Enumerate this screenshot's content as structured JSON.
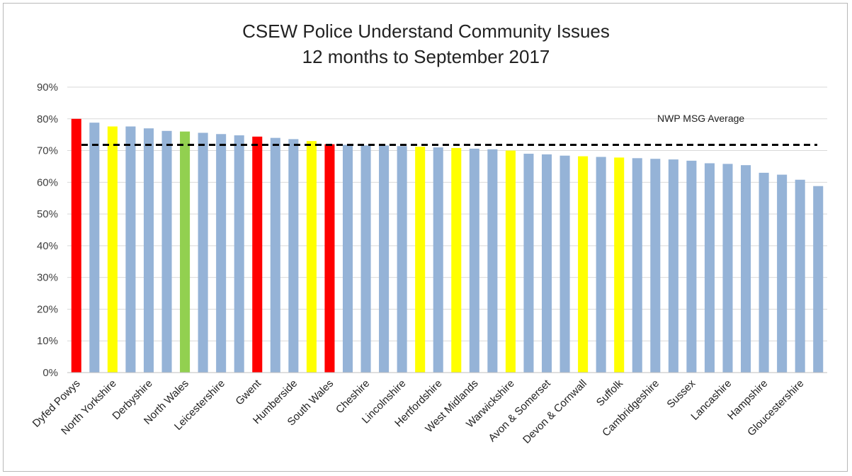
{
  "chart_data": {
    "type": "bar",
    "title": "CSEW Police Understand Community Issues",
    "subtitle": "12 months to September 2017",
    "xlabel": "",
    "ylabel": "",
    "ylim": [
      0,
      90
    ],
    "yticks": [
      "0%",
      "10%",
      "20%",
      "30%",
      "40%",
      "50%",
      "60%",
      "70%",
      "80%",
      "90%"
    ],
    "grid": true,
    "reference_line": {
      "label": "NWP MSG Average",
      "value": 71.8
    },
    "colors": {
      "red": "#ff0000",
      "blue": "#95b3d7",
      "yellow": "#ffff00",
      "green": "#92d050",
      "grid": "#d9d9d9",
      "line": "#000000"
    },
    "values": [
      80.0,
      78.8,
      77.6,
      77.6,
      77.0,
      76.2,
      76.0,
      75.6,
      75.2,
      74.8,
      74.4,
      74.0,
      73.6,
      73.0,
      72.0,
      71.8,
      71.6,
      71.6,
      71.4,
      71.2,
      71.0,
      70.8,
      70.6,
      70.4,
      70.0,
      69.0,
      68.8,
      68.4,
      68.2,
      68.0,
      67.8,
      67.6,
      67.4,
      67.2,
      66.8,
      66.0,
      65.8,
      65.4,
      63.0,
      62.4,
      60.8,
      58.8
    ],
    "bar_colors": [
      "red",
      "blue",
      "yellow",
      "blue",
      "blue",
      "blue",
      "green",
      "blue",
      "blue",
      "blue",
      "red",
      "blue",
      "blue",
      "yellow",
      "red",
      "blue",
      "blue",
      "blue",
      "blue",
      "yellow",
      "blue",
      "yellow",
      "blue",
      "blue",
      "yellow",
      "blue",
      "blue",
      "blue",
      "yellow",
      "blue",
      "yellow",
      "blue",
      "blue",
      "blue",
      "blue",
      "blue",
      "blue",
      "blue",
      "blue",
      "blue",
      "blue",
      "blue"
    ],
    "categories": [
      "Dyfed Powys",
      "",
      "North Yorkshire",
      "",
      "Derbyshire",
      "",
      "North Wales",
      "",
      "Leicestershire",
      "",
      "Gwent",
      "",
      "Humberside",
      "",
      "South Wales",
      "",
      "Cheshire",
      "",
      "Lincolnshire",
      "",
      "Hertfordshire",
      "",
      "West Midlands",
      "",
      "Warwickshire",
      "",
      "Avon & Somerset",
      "",
      "Devon & Cornwall",
      "",
      "Suffolk",
      "",
      "Cambridgeshire",
      "",
      "Sussex",
      "",
      "Lancashire",
      "",
      "Hampshire",
      "",
      "Gloucestershire",
      ""
    ]
  }
}
